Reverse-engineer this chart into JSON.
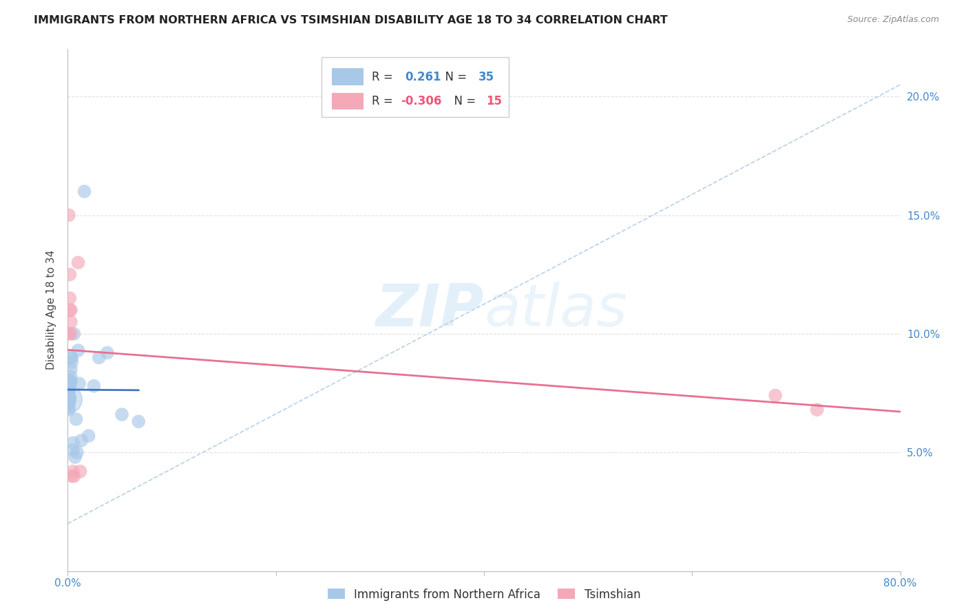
{
  "title": "IMMIGRANTS FROM NORTHERN AFRICA VS TSIMSHIAN DISABILITY AGE 18 TO 34 CORRELATION CHART",
  "source": "Source: ZipAtlas.com",
  "ylabel": "Disability Age 18 to 34",
  "xlim": [
    0,
    0.8
  ],
  "ylim": [
    0,
    0.22
  ],
  "xticks": [
    0.0,
    0.2,
    0.4,
    0.6,
    0.8
  ],
  "xtick_labels": [
    "0.0%",
    "",
    "",
    "",
    "80.0%"
  ],
  "yticks": [
    0.05,
    0.1,
    0.15,
    0.2
  ],
  "ytick_labels": [
    "5.0%",
    "10.0%",
    "15.0%",
    "20.0%"
  ],
  "blue_r": 0.261,
  "blue_n": 35,
  "pink_r": -0.306,
  "pink_n": 15,
  "blue_color": "#A8C8E8",
  "pink_color": "#F4A8B8",
  "blue_line_color": "#4472C4",
  "pink_line_color": "#E87090",
  "diag_line_color": "#B8D0E8",
  "watermark_color": "#D8EAF8",
  "background_color": "#FFFFFF",
  "grid_color": "#DDDDDD",
  "blue_points_x": [
    0.001,
    0.001,
    0.001,
    0.001,
    0.001,
    0.001,
    0.001,
    0.001,
    0.002,
    0.002,
    0.002,
    0.002,
    0.002,
    0.003,
    0.003,
    0.003,
    0.003,
    0.004,
    0.004,
    0.005,
    0.005,
    0.006,
    0.007,
    0.008,
    0.009,
    0.01,
    0.011,
    0.013,
    0.016,
    0.02,
    0.025,
    0.03,
    0.038,
    0.052,
    0.068
  ],
  "blue_points_y": [
    0.071,
    0.072,
    0.073,
    0.069,
    0.068,
    0.074,
    0.075,
    0.076,
    0.072,
    0.073,
    0.078,
    0.079,
    0.08,
    0.08,
    0.082,
    0.085,
    0.09,
    0.088,
    0.09,
    0.051,
    0.054,
    0.1,
    0.048,
    0.064,
    0.05,
    0.093,
    0.079,
    0.055,
    0.16,
    0.057,
    0.078,
    0.09,
    0.092,
    0.066,
    0.063
  ],
  "pink_points_x": [
    0.001,
    0.001,
    0.002,
    0.002,
    0.002,
    0.003,
    0.003,
    0.003,
    0.004,
    0.005,
    0.006,
    0.01,
    0.012,
    0.68,
    0.72
  ],
  "pink_points_y": [
    0.1,
    0.15,
    0.11,
    0.115,
    0.125,
    0.1,
    0.105,
    0.11,
    0.04,
    0.042,
    0.04,
    0.13,
    0.042,
    0.074,
    0.068
  ]
}
